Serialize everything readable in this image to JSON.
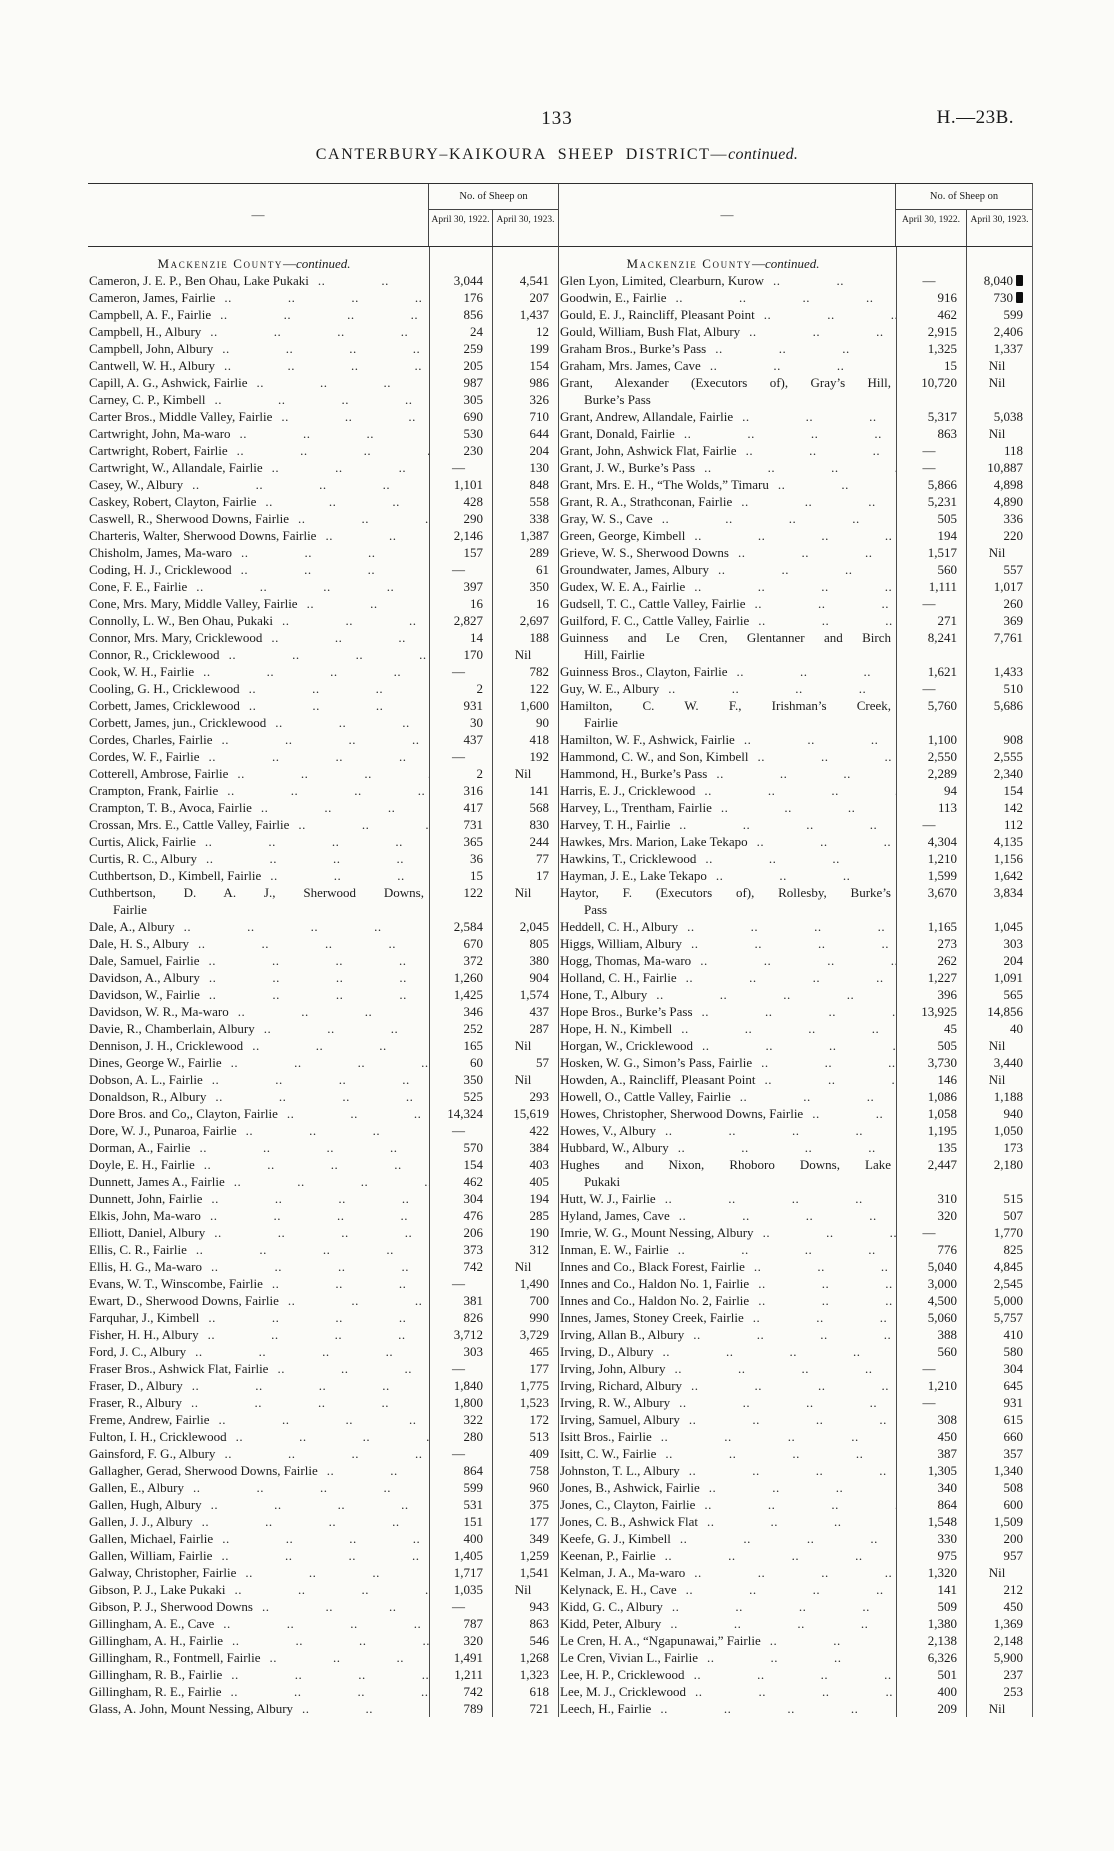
{
  "page": {
    "number": "133",
    "ref": "H.—23B."
  },
  "title": {
    "main": "CANTERBURY–KAIKOURA SHEEP DISTRICT",
    "dash": "—",
    "cont": "continued."
  },
  "columns": {
    "placeholder": "—",
    "group": "No. of Sheep on",
    "y1922": "April 30, 1922.",
    "y1923": "April 30, 1923."
  },
  "tables": [
    {
      "section": {
        "name": "Mackenzie County",
        "dash": "—",
        "cont": "continued."
      },
      "rows": [
        {
          "n": "Cameron, J. E. P., Ben Ohau, Lake Pukaki",
          "a": "3,044",
          "b": "4,541"
        },
        {
          "n": "Cameron, James, Fairlie",
          "a": "176",
          "b": "207"
        },
        {
          "n": "Campbell, A. F., Fairlie",
          "a": "856",
          "b": "1,437"
        },
        {
          "n": "Campbell, H., Albury",
          "a": "24",
          "b": "12"
        },
        {
          "n": "Campbell, John, Albury",
          "a": "259",
          "b": "199"
        },
        {
          "n": "Cantwell, W. H., Albury",
          "a": "205",
          "b": "154"
        },
        {
          "n": "Capill, A. G., Ashwick, Fairlie",
          "a": "987",
          "b": "986"
        },
        {
          "n": "Carney, C. P., Kimbell",
          "a": "305",
          "b": "326"
        },
        {
          "n": "Carter Bros., Middle Valley, Fairlie",
          "a": "690",
          "b": "710"
        },
        {
          "n": "Cartwright, John, Ma-waro",
          "a": "530",
          "b": "644"
        },
        {
          "n": "Cartwright, Robert, Fairlie",
          "a": "230",
          "b": "204"
        },
        {
          "n": "Cartwright, W., Allandale, Fairlie",
          "a": "—",
          "b": "130"
        },
        {
          "n": "Casey, W., Albury",
          "a": "1,101",
          "b": "848"
        },
        {
          "n": "Caskey, Robert, Clayton, Fairlie",
          "a": "428",
          "b": "558"
        },
        {
          "n": "Caswell, R., Sherwood Downs, Fairlie",
          "a": "290",
          "b": "338"
        },
        {
          "n": "Charteris, Walter, Sherwood Downs, Fairlie",
          "a": "2,146",
          "b": "1,387"
        },
        {
          "n": "Chisholm, James, Ma-waro",
          "a": "157",
          "b": "289"
        },
        {
          "n": "Coding, H. J., Cricklewood",
          "a": "—",
          "b": "61"
        },
        {
          "n": "Cone, F. E., Fairlie",
          "a": "397",
          "b": "350"
        },
        {
          "n": "Cone, Mrs. Mary, Middle Valley, Fairlie",
          "a": "16",
          "b": "16"
        },
        {
          "n": "Connolly, L. W., Ben Ohau, Pukaki",
          "a": "2,827",
          "b": "2,697"
        },
        {
          "n": "Connor, Mrs. Mary, Cricklewood",
          "a": "14",
          "b": "188"
        },
        {
          "n": "Connor, R., Cricklewood",
          "a": "170",
          "b": "Nil"
        },
        {
          "n": "Cook, W. H., Fairlie",
          "a": "—",
          "b": "782"
        },
        {
          "n": "Cooling, G. H., Cricklewood",
          "a": "2",
          "b": "122"
        },
        {
          "n": "Corbett, James, Cricklewood",
          "a": "931",
          "b": "1,600"
        },
        {
          "n": "Corbett, James, jun., Cricklewood",
          "a": "30",
          "b": "90"
        },
        {
          "n": "Cordes, Charles, Fairlie",
          "a": "437",
          "b": "418"
        },
        {
          "n": "Cordes, W. F., Fairlie",
          "a": "—",
          "b": "192"
        },
        {
          "n": "Cotterell, Ambrose, Fairlie",
          "a": "2",
          "b": "Nil"
        },
        {
          "n": "Crampton, Frank, Fairlie",
          "a": "316",
          "b": "141"
        },
        {
          "n": "Crampton, T. B., Avoca, Fairlie",
          "a": "417",
          "b": "568"
        },
        {
          "n": "Crossan, Mrs. E., Cattle Valley, Fairlie",
          "a": "731",
          "b": "830"
        },
        {
          "n": "Curtis, Alick, Fairlie",
          "a": "365",
          "b": "244"
        },
        {
          "n": "Curtis, R. C., Albury",
          "a": "36",
          "b": "77"
        },
        {
          "n": "Cuthbertson, D., Kimbell, Fairlie",
          "a": "15",
          "b": "17"
        },
        {
          "n": "Cuthbertson, D. A. J., Sherwood Downs,",
          "n2": "Fairlie",
          "a": "122",
          "b": "Nil"
        },
        {
          "n": "Dale, A., Albury",
          "a": "2,584",
          "b": "2,045"
        },
        {
          "n": "Dale, H. S., Albury",
          "a": "670",
          "b": "805"
        },
        {
          "n": "Dale, Samuel, Fairlie",
          "a": "372",
          "b": "380"
        },
        {
          "n": "Davidson, A., Albury",
          "a": "1,260",
          "b": "904"
        },
        {
          "n": "Davidson, W., Fairlie",
          "a": "1,425",
          "b": "1,574"
        },
        {
          "n": "Davidson, W. R., Ma-waro",
          "a": "346",
          "b": "437"
        },
        {
          "n": "Davie, R., Chamberlain, Albury",
          "a": "252",
          "b": "287"
        },
        {
          "n": "Dennison, J. H., Cricklewood",
          "a": "165",
          "b": "Nil"
        },
        {
          "n": "Dines, George W., Fairlie",
          "a": "60",
          "b": "57"
        },
        {
          "n": "Dobson, A. L., Fairlie",
          "a": "350",
          "b": "Nil"
        },
        {
          "n": "Donaldson, R., Albury",
          "a": "525",
          "b": "293"
        },
        {
          "n": "Dore Bros. and Co,, Clayton, Fairlie",
          "a": "14,324",
          "b": "15,619"
        },
        {
          "n": "Dore, W. J., Punaroa, Fairlie",
          "a": "—",
          "b": "422"
        },
        {
          "n": "Dorman, A., Fairlie",
          "a": "570",
          "b": "384"
        },
        {
          "n": "Doyle, E. H., Fairlie",
          "a": "154",
          "b": "403"
        },
        {
          "n": "Dunnett, James A., Fairlie",
          "a": "462",
          "b": "405"
        },
        {
          "n": "Dunnett, John, Fairlie",
          "a": "304",
          "b": "194"
        },
        {
          "n": "Elkis, John, Ma-waro",
          "a": "476",
          "b": "285"
        },
        {
          "n": "Elliott, Daniel, Albury",
          "a": "206",
          "b": "190"
        },
        {
          "n": "Ellis, C. R., Fairlie",
          "a": "373",
          "b": "312"
        },
        {
          "n": "Ellis, H. G., Ma-waro",
          "a": "742",
          "b": "Nil"
        },
        {
          "n": "Evans, W. T., Winscombe, Fairlie",
          "a": "—",
          "b": "1,490"
        },
        {
          "n": "Ewart, D., Sherwood Downs, Fairlie",
          "a": "381",
          "b": "700"
        },
        {
          "n": "Farquhar, J., Kimbell",
          "a": "826",
          "b": "990"
        },
        {
          "n": "Fisher, H. H., Albury",
          "a": "3,712",
          "b": "3,729"
        },
        {
          "n": "Ford, J. C., Albury",
          "a": "303",
          "b": "465"
        },
        {
          "n": "Fraser Bros., Ashwick Flat, Fairlie",
          "a": "—",
          "b": "177"
        },
        {
          "n": "Fraser, D., Albury",
          "a": "1,840",
          "b": "1,775"
        },
        {
          "n": "Fraser, R., Albury",
          "a": "1,800",
          "b": "1,523"
        },
        {
          "n": "Freme, Andrew, Fairlie",
          "a": "322",
          "b": "172"
        },
        {
          "n": "Fulton, I. H., Cricklewood",
          "a": "280",
          "b": "513"
        },
        {
          "n": "Gainsford, F. G., Albury",
          "a": "—",
          "b": "409"
        },
        {
          "n": "Gallagher, Gerad, Sherwood Downs, Fairlie",
          "a": "864",
          "b": "758"
        },
        {
          "n": "Gallen, E., Albury",
          "a": "599",
          "b": "960"
        },
        {
          "n": "Gallen, Hugh, Albury",
          "a": "531",
          "b": "375"
        },
        {
          "n": "Gallen, J. J., Albury",
          "a": "151",
          "b": "177"
        },
        {
          "n": "Gallen, Michael, Fairlie",
          "a": "400",
          "b": "349"
        },
        {
          "n": "Gallen, William, Fairlie",
          "a": "1,405",
          "b": "1,259"
        },
        {
          "n": "Galway, Christopher, Fairlie",
          "a": "1,717",
          "b": "1,541"
        },
        {
          "n": "Gibson, P. J., Lake Pukaki",
          "a": "1,035",
          "b": "Nil"
        },
        {
          "n": "Gibson, P. J., Sherwood Downs",
          "a": "—",
          "b": "943"
        },
        {
          "n": "Gillingham, A. E., Cave",
          "a": "787",
          "b": "863"
        },
        {
          "n": "Gillingham, A. H., Fairlie",
          "a": "320",
          "b": "546"
        },
        {
          "n": "Gillingham, R., Fontmell, Fairlie",
          "a": "1,491",
          "b": "1,268"
        },
        {
          "n": "Gillingham, R. B., Fairlie",
          "a": "1,211",
          "b": "1,323"
        },
        {
          "n": "Gillingham, R. E., Fairlie",
          "a": "742",
          "b": "618"
        },
        {
          "n": "Glass, A. John, Mount Nessing, Albury",
          "a": "789",
          "b": "721"
        }
      ]
    },
    {
      "section": {
        "name": "Mackenzie County",
        "dash": "—",
        "cont": "continued."
      },
      "rows": [
        {
          "n": "Glen Lyon, Limited, Clearburn, Kurow",
          "a": "—",
          "b": "8,040",
          "blot": true
        },
        {
          "n": "Goodwin, E., Fairlie",
          "a": "916",
          "b": "730",
          "blot": true
        },
        {
          "n": "Gould, E. J., Raincliff, Pleasant Point",
          "a": "462",
          "b": "599"
        },
        {
          "n": "Gould, William, Bush Flat, Albury",
          "a": "2,915",
          "b": "2,406"
        },
        {
          "n": "Graham Bros., Burke’s Pass",
          "a": "1,325",
          "b": "1,337"
        },
        {
          "n": "Graham, Mrs. James, Cave",
          "a": "15",
          "b": "Nil"
        },
        {
          "n": "Grant, Alexander (Executors of), Gray’s Hill,",
          "n2": "Burke’s Pass",
          "a": "10,720",
          "b": "Nil"
        },
        {
          "n": "Grant, Andrew, Allandale, Fairlie",
          "a": "5,317",
          "b": "5,038"
        },
        {
          "n": "Grant, Donald, Fairlie",
          "a": "863",
          "b": "Nil"
        },
        {
          "n": "Grant, John, Ashwick Flat, Fairlie",
          "a": "—",
          "b": "118"
        },
        {
          "n": "Grant, J. W., Burke’s Pass",
          "a": "—",
          "b": "10,887"
        },
        {
          "n": "Grant, Mrs. E. H., “The Wolds,” Timaru",
          "a": "5,866",
          "b": "4,898"
        },
        {
          "n": "Grant, R. A., Strathconan, Fairlie",
          "a": "5,231",
          "b": "4,890"
        },
        {
          "n": "Gray, W. S., Cave",
          "a": "505",
          "b": "336"
        },
        {
          "n": "Green, George, Kimbell",
          "a": "194",
          "b": "220"
        },
        {
          "n": "Grieve, W. S., Sherwood Downs",
          "a": "1,517",
          "b": "Nil"
        },
        {
          "n": "Groundwater, James, Albury",
          "a": "560",
          "b": "557"
        },
        {
          "n": "Gudex, W. E. A., Fairlie",
          "a": "1,111",
          "b": "1,017"
        },
        {
          "n": "Gudsell, T. C., Cattle Valley, Fairlie",
          "a": "—",
          "b": "260"
        },
        {
          "n": "Guilford, F. C., Cattle Valley, Fairlie",
          "a": "271",
          "b": "369"
        },
        {
          "n": "Guinness and Le Cren, Glentanner and Birch",
          "n2": "Hill, Fairlie",
          "a": "8,241",
          "b": "7,761"
        },
        {
          "n": "Guinness Bros., Clayton, Fairlie",
          "a": "1,621",
          "b": "1,433"
        },
        {
          "n": "Guy, W. E., Albury",
          "a": "—",
          "b": "510"
        },
        {
          "n": "Hamilton, C. W. F., Irishman’s Creek,",
          "n2": "Fairlie",
          "a": "5,760",
          "b": "5,686"
        },
        {
          "n": "Hamilton, W. F., Ashwick, Fairlie",
          "a": "1,100",
          "b": "908"
        },
        {
          "n": "Hammond, C. W., and Son, Kimbell",
          "a": "2,550",
          "b": "2,555"
        },
        {
          "n": "Hammond, H., Burke’s Pass",
          "a": "2,289",
          "b": "2,340"
        },
        {
          "n": "Harris, E. J., Cricklewood",
          "a": "94",
          "b": "154"
        },
        {
          "n": "Harvey, L., Trentham, Fairlie",
          "a": "113",
          "b": "142"
        },
        {
          "n": "Harvey, T. H., Fairlie",
          "a": "—",
          "b": "112"
        },
        {
          "n": "Hawkes, Mrs. Marion, Lake Tekapo",
          "a": "4,304",
          "b": "4,135"
        },
        {
          "n": "Hawkins, T., Cricklewood",
          "a": "1,210",
          "b": "1,156"
        },
        {
          "n": "Hayman, J. E., Lake Tekapo",
          "a": "1,599",
          "b": "1,642"
        },
        {
          "n": "Haytor, F. (Executors of), Rollesby, Burke’s",
          "n2": "Pass",
          "a": "3,670",
          "b": "3,834"
        },
        {
          "n": "Heddell, C. H., Albury",
          "a": "1,165",
          "b": "1,045"
        },
        {
          "n": "Higgs, William, Albury",
          "a": "273",
          "b": "303"
        },
        {
          "n": "Hogg, Thomas, Ma-waro",
          "a": "262",
          "b": "204"
        },
        {
          "n": "Holland, C. H., Fairlie",
          "a": "1,227",
          "b": "1,091"
        },
        {
          "n": "Hone, T., Albury",
          "a": "396",
          "b": "565"
        },
        {
          "n": "Hope Bros., Burke’s Pass",
          "a": "13,925",
          "b": "14,856"
        },
        {
          "n": "Hope, H. N., Kimbell",
          "a": "45",
          "b": "40"
        },
        {
          "n": "Horgan, W., Cricklewood",
          "a": "505",
          "b": "Nil"
        },
        {
          "n": "Hosken, W. G., Simon’s Pass, Fairlie",
          "a": "3,730",
          "b": "3,440"
        },
        {
          "n": "Howden, A., Raincliff, Pleasant Point",
          "a": "146",
          "b": "Nil"
        },
        {
          "n": "Howell, O., Cattle Valley, Fairlie",
          "a": "1,086",
          "b": "1,188"
        },
        {
          "n": "Howes, Christopher, Sherwood Downs, Fairlie",
          "a": "1,058",
          "b": "940"
        },
        {
          "n": "Howes, V., Albury",
          "a": "1,195",
          "b": "1,050"
        },
        {
          "n": "Hubbard, W., Albury",
          "a": "135",
          "b": "173"
        },
        {
          "n": "Hughes and Nixon, Rhoboro Downs, Lake",
          "n2": "Pukaki",
          "a": "2,447",
          "b": "2,180"
        },
        {
          "n": "Hutt, W. J., Fairlie",
          "a": "310",
          "b": "515"
        },
        {
          "n": "Hyland, James, Cave",
          "a": "320",
          "b": "507"
        },
        {
          "n": "Imrie, W. G., Mount Nessing, Albury",
          "a": "—",
          "b": "1,770"
        },
        {
          "n": "Inman, E. W., Fairlie",
          "a": "776",
          "b": "825"
        },
        {
          "n": "Innes and Co., Black Forest, Fairlie",
          "a": "5,040",
          "b": "4,845"
        },
        {
          "n": "Innes and Co., Haldon No. 1, Fairlie",
          "a": "3,000",
          "b": "2,545"
        },
        {
          "n": "Innes and Co., Haldon No. 2, Fairlie",
          "a": "4,500",
          "b": "5,000"
        },
        {
          "n": "Innes, James, Stoney Creek, Fairlie",
          "a": "5,060",
          "b": "5,757"
        },
        {
          "n": "Irving, Allan B., Albury",
          "a": "388",
          "b": "410"
        },
        {
          "n": "Irving, D., Albury",
          "a": "560",
          "b": "580"
        },
        {
          "n": "Irving, John, Albury",
          "a": "—",
          "b": "304"
        },
        {
          "n": "Irving, Richard, Albury",
          "a": "1,210",
          "b": "645"
        },
        {
          "n": "Irving, R. W., Albury",
          "a": "—",
          "b": "931"
        },
        {
          "n": "Irving, Samuel, Albury",
          "a": "308",
          "b": "615"
        },
        {
          "n": "Isitt Bros., Fairlie",
          "a": "450",
          "b": "660"
        },
        {
          "n": "Isitt, C. W., Fairlie",
          "a": "387",
          "b": "357"
        },
        {
          "n": "Johnston, T. L., Albury",
          "a": "1,305",
          "b": "1,340"
        },
        {
          "n": "Jones, B., Ashwick, Fairlie",
          "a": "340",
          "b": "508"
        },
        {
          "n": "Jones, C., Clayton, Fairlie",
          "a": "864",
          "b": "600"
        },
        {
          "n": "Jones, C. B., Ashwick Flat",
          "a": "1,548",
          "b": "1,509"
        },
        {
          "n": "Keefe, G. J., Kimbell",
          "a": "330",
          "b": "200"
        },
        {
          "n": "Keenan, P., Fairlie",
          "a": "975",
          "b": "957"
        },
        {
          "n": "Kelman, J. A., Ma-waro",
          "a": "1,320",
          "b": "Nil"
        },
        {
          "n": "Kelynack, E. H., Cave",
          "a": "141",
          "b": "212"
        },
        {
          "n": "Kidd, G. C., Albury",
          "a": "509",
          "b": "450"
        },
        {
          "n": "Kidd, Peter, Albury",
          "a": "1,380",
          "b": "1,369"
        },
        {
          "n": "Le Cren, H. A., “Ngapunawai,” Fairlie",
          "a": "2,138",
          "b": "2,148"
        },
        {
          "n": "Le Cren, Vivian L., Fairlie",
          "a": "6,326",
          "b": "5,900"
        },
        {
          "n": "Lee, H. P., Cricklewood",
          "a": "501",
          "b": "237"
        },
        {
          "n": "Lee, M. J., Cricklewood",
          "a": "400",
          "b": "253"
        },
        {
          "n": "Leech, H., Fairlie",
          "a": "209",
          "b": "Nil"
        }
      ]
    }
  ]
}
